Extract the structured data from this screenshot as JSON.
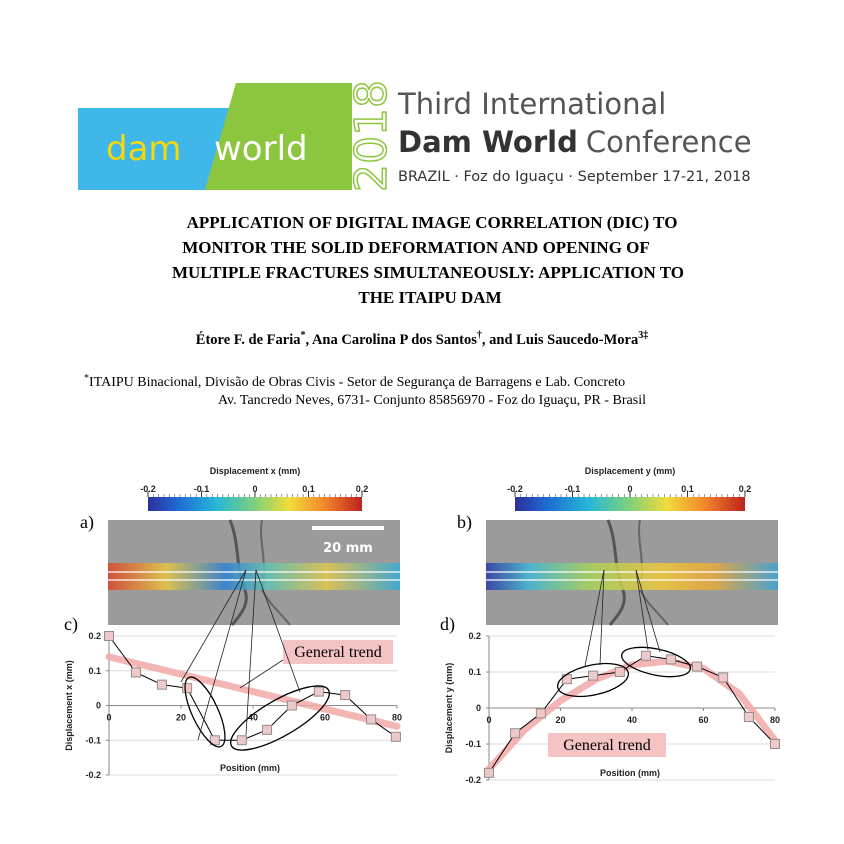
{
  "header": {
    "logo": [
      "dam",
      "world"
    ],
    "year": "2018",
    "line1": "Third International",
    "line2": [
      "Dam World",
      "Conference"
    ],
    "line3": "BRAZIL · Foz do Iguaçu · September 17-21, 2018"
  },
  "paper": {
    "title_lines": [
      "APPLICATION OF DIGITAL IMAGE CORRELATION (DIC) TO",
      "MONITOR THE SOLID DEFORMATION AND OPENING OF",
      "MULTIPLE FRACTURES SIMULTANEOUSLY: APPLICATION TO",
      "THE ITAIPU DAM"
    ],
    "authors": [
      {
        "name": "Étore F. de Faria",
        "mark": "*"
      },
      {
        "name": ", Ana Carolina P dos Santos",
        "mark": "†"
      },
      {
        "name": ", and Luis Saucedo-Mora",
        "mark": "3‡"
      }
    ],
    "affiliation": {
      "mark": "*",
      "lines": [
        "ITAIPU Binacional, Divisão de Obras Civis - Setor de Segurança de Barragens e Lab. Concreto",
        "Av. Tancredo Neves, 6731- Conjunto 85856970 - Foz do Iguaçu, PR - Brasil"
      ]
    }
  },
  "figure": {
    "panel_labels": [
      "a)",
      "b)",
      "c)",
      "d)"
    ],
    "scale_bar": "20 mm",
    "colorbars": [
      {
        "title": "Displacement x (mm)",
        "lim": [
          -0.2,
          0.2
        ],
        "ticks": [
          -0.2,
          -0.1,
          0,
          0.1,
          0.2
        ]
      },
      {
        "title": "Displacement y (mm)",
        "lim": [
          -0.2,
          0.2
        ],
        "ticks": [
          -0.2,
          -0.1,
          0,
          0.1,
          0.2
        ]
      }
    ]
  },
  "chart_data": [
    {
      "type": "line",
      "x_label": "Position (mm)",
      "y_label": "Displacement x (mm)",
      "xlim": [
        0,
        80
      ],
      "xticks": [
        0,
        20,
        40,
        60,
        80
      ],
      "ylim": [
        -0.2,
        0.2
      ],
      "yticks": [
        -0.2,
        -0.1,
        0,
        0.1,
        0.2
      ],
      "grid": true,
      "series": [
        {
          "name": "General trend",
          "color": "#f2a8a8",
          "line_width": 7,
          "x": [
            0,
            80
          ],
          "values": [
            0.14,
            -0.06
          ]
        },
        {
          "color": "#000000",
          "line_width": 1,
          "marker": "square",
          "x": [
            0,
            7.5,
            14.7,
            21.7,
            29.4,
            36.9,
            43.9,
            50.8,
            58.3,
            65.6,
            72.8,
            79.7
          ],
          "values": [
            0.2,
            0.095,
            0.06,
            0.05,
            -0.1,
            -0.1,
            -0.07,
            0,
            0.04,
            0.03,
            -0.04,
            -0.09
          ]
        }
      ]
    },
    {
      "type": "line",
      "x_label": "Position (mm)",
      "y_label": "Displacement y (mm)",
      "xlim": [
        0,
        80
      ],
      "xticks": [
        0,
        20,
        40,
        60,
        80
      ],
      "ylim": [
        -0.2,
        0.2
      ],
      "yticks": [
        -0.2,
        -0.1,
        0,
        0.1,
        0.2
      ],
      "grid": true,
      "series": [
        {
          "name": "General trend",
          "color": "#f2a8a8",
          "line_width": 7,
          "x": [
            0,
            10,
            20,
            30,
            40,
            50,
            60,
            70,
            80
          ],
          "values": [
            -0.17,
            -0.06,
            0.02,
            0.08,
            0.12,
            0.13,
            0.11,
            0.04,
            -0.09
          ]
        },
        {
          "color": "#000000",
          "line_width": 1,
          "marker": "square",
          "x": [
            0,
            7.3,
            14.5,
            21.8,
            29.1,
            36.6,
            43.9,
            50.9,
            58.2,
            65.5,
            72.7,
            80
          ],
          "values": [
            -0.18,
            -0.07,
            -0.015,
            0.08,
            0.09,
            0.1,
            0.145,
            0.135,
            0.115,
            0.085,
            -0.025,
            -0.1
          ]
        }
      ]
    }
  ]
}
